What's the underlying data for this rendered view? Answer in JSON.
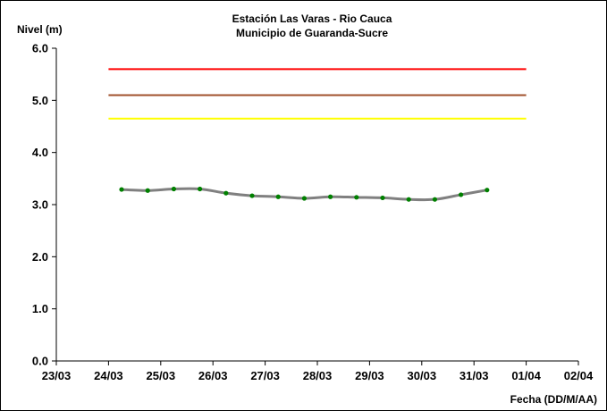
{
  "chart_data": {
    "type": "line",
    "title": "Estación Las Varas - Rio Cauca",
    "subtitle": "Municipio de Guaranda-Sucre",
    "xlabel": "Fecha (DD/M/AA)",
    "ylabel": "Nivel (m)",
    "ylim": [
      0,
      6
    ],
    "xlim": [
      "2024-03-23",
      "2024-04-02"
    ],
    "y_ticks": [
      "0.0",
      "1.0",
      "2.0",
      "3.0",
      "4.0",
      "5.0",
      "6.0"
    ],
    "x_ticks": [
      "23/03",
      "24/03",
      "25/03",
      "26/03",
      "27/03",
      "28/03",
      "29/03",
      "30/03",
      "31/03",
      "01/04",
      "02/04"
    ],
    "grid": false,
    "thresholds": [
      {
        "value": 5.6,
        "color": "#ff0000",
        "x_start": "2024-03-24 00:00",
        "x_end": "2024-04-01 00:00"
      },
      {
        "value": 5.1,
        "color": "#a0522d",
        "x_start": "2024-03-24 00:00",
        "x_end": "2024-04-01 00:00"
      },
      {
        "value": 4.65,
        "color": "#ffff00",
        "x_start": "2024-03-24 00:00",
        "x_end": "2024-04-01 00:00"
      }
    ],
    "series": [
      {
        "line_color": "#808080",
        "marker_color": "#008000",
        "x": [
          "2024-03-24 06:00",
          "2024-03-24 18:00",
          "2024-03-25 06:00",
          "2024-03-25 18:00",
          "2024-03-26 06:00",
          "2024-03-26 18:00",
          "2024-03-27 06:00",
          "2024-03-27 18:00",
          "2024-03-28 06:00",
          "2024-03-28 18:00",
          "2024-03-29 06:00",
          "2024-03-29 18:00",
          "2024-03-30 06:00",
          "2024-03-30 18:00",
          "2024-03-31 06:00"
        ],
        "values": [
          3.29,
          3.27,
          3.3,
          3.3,
          3.22,
          3.17,
          3.15,
          3.12,
          3.15,
          3.14,
          3.13,
          3.1,
          3.1,
          3.19,
          3.28
        ]
      }
    ]
  }
}
